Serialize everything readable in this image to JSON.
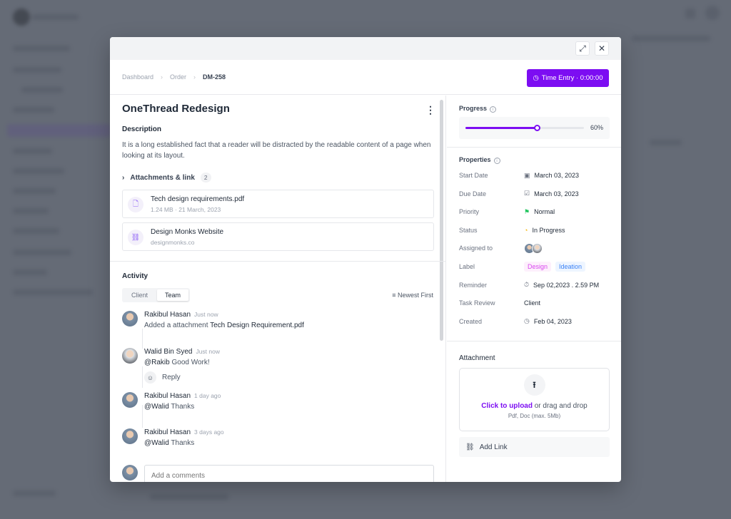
{
  "breadcrumb": [
    "Dashboard",
    "Order",
    "DM-258"
  ],
  "time_entry": "Time Entry · 0:00:00",
  "task": {
    "title": "OneThread Redesign",
    "description_heading": "Description",
    "description": "It is a long established fact that a reader will be distracted by the readable content of a page when looking at its layout.",
    "attachments_label": "Attachments & link",
    "attachments_count": "2",
    "attachments": [
      {
        "name": "Tech design requirements.pdf",
        "meta": "1.24 MB · 21 March, 2023",
        "icon": "file-icon"
      },
      {
        "name": "Design Monks Website",
        "meta": "designmonks.co",
        "icon": "link-icon"
      }
    ]
  },
  "activity": {
    "heading": "Activity",
    "tabs": [
      "Client",
      "Team"
    ],
    "active_tab": "Team",
    "sort": "Newest First",
    "items": [
      {
        "name": "Rakibul Hasan",
        "time": "Just now",
        "mention": "",
        "text": "Added a attachment ",
        "strong": "Tech Design Requirement.pdf"
      },
      {
        "name": "Walid Bin Syed",
        "time": "Just now",
        "mention": "@Rakib",
        "text": " Good Work!",
        "strong": ""
      },
      {
        "name": "Rakibul Hasan",
        "time": "1 day ago",
        "mention": "@Walid",
        "text": " Thanks",
        "strong": ""
      },
      {
        "name": "Rakibul Hasan",
        "time": "3 days ago",
        "mention": "@Walid",
        "text": " Thanks",
        "strong": ""
      }
    ],
    "reply": "Reply",
    "comment_placeholder": "Add a comments"
  },
  "progress": {
    "label": "Progress",
    "value": 60,
    "display": "60%",
    "color": "#7c0df2"
  },
  "properties": {
    "label": "Properties",
    "rows": [
      {
        "key": "Start Date",
        "value": "March 03, 2023",
        "icon": "calendar-icon"
      },
      {
        "key": "Due Date",
        "value": "March 03, 2023",
        "icon": "calendar-check-icon"
      },
      {
        "key": "Priority",
        "value": "Normal",
        "icon": "flag-icon"
      },
      {
        "key": "Status",
        "value": "In Progress",
        "icon": "progress-ring-icon"
      },
      {
        "key": "Assigned to",
        "value": "",
        "icon": "avatars"
      },
      {
        "key": "Label",
        "value": "",
        "icon": ""
      },
      {
        "key": "Reminder",
        "value": "Sep 02,2023 . 2.59 PM",
        "icon": "stopwatch-icon"
      },
      {
        "key": "Task Review",
        "value": "Client",
        "icon": ""
      },
      {
        "key": "Created",
        "value": "Feb 04, 2023",
        "icon": "clock-icon"
      }
    ],
    "labels": [
      {
        "text": "Design",
        "color": "#d946ef",
        "bg": "#fdf0fc"
      },
      {
        "text": "Ideation",
        "color": "#3b82f6",
        "bg": "#eef5ff"
      }
    ]
  },
  "attachment": {
    "heading": "Attachment",
    "upload_link": "Click to upload",
    "upload_rest": " or drag and drop",
    "upload_hint": "Pdf, Doc  (max. 5Mb)",
    "add_link": "Add Link"
  }
}
